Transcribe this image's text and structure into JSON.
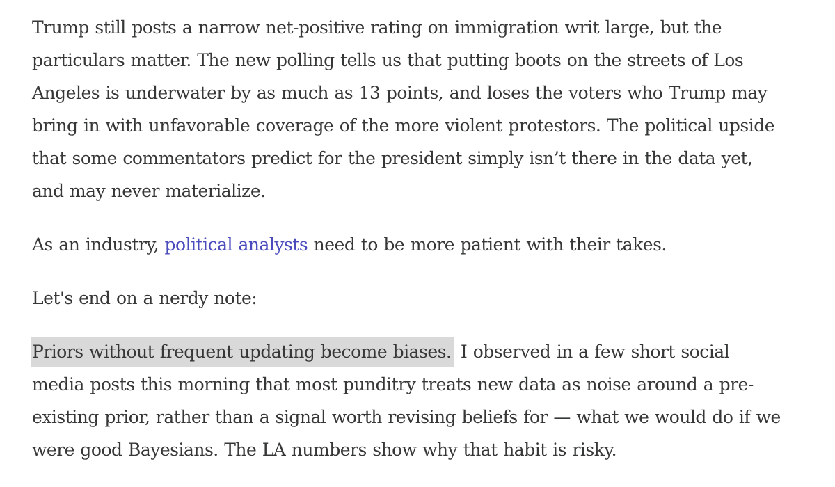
{
  "article": {
    "paragraph_1": {
      "lines": [
        "Trump still posts a narrow net-positive rating on immigration writ large, but the",
        "particulars matter. The new polling tells us that putting boots on the streets of Los",
        "Angeles is underwater by as much as 13 points, and loses the voters who Trump may",
        "bring in with unfavorable coverage of the more violent protestors. The political upside",
        "that some commentators predict for the president simply isn’t there in the data yet,",
        "and may never materialize."
      ]
    },
    "paragraph_2": {
      "before_link": "As an industry, ",
      "link_text": "political analysts",
      "after_link": " need to be more patient with their takes."
    },
    "paragraph_3": {
      "text": "Let's end on a nerdy note:"
    },
    "paragraph_4": {
      "highlighted_text": "Priors without frequent updating become biases.",
      "line_1_rest": " I observed in a few short social",
      "lines": [
        "media posts this morning that most punditry treats new data as noise around a pre-",
        "existing prior, rather than a signal worth revising beliefs for — what we would do if we",
        "were good Bayesians. The LA numbers show why that habit is risky."
      ]
    },
    "colors": {
      "text": "#363737",
      "link": "#4a4bbd",
      "highlight": "#d9d9d9"
    }
  }
}
